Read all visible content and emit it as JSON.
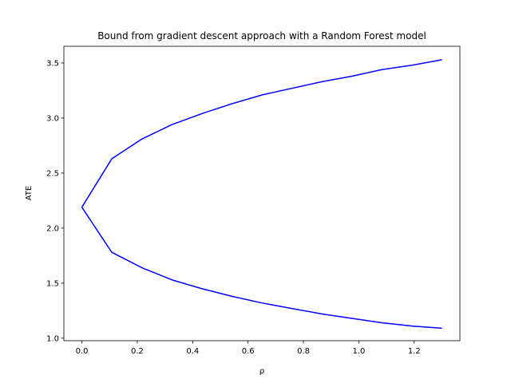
{
  "chart_data": {
    "type": "line",
    "title": "Bound from gradient descent approach with a Random Forest model",
    "xlabel": "ρ",
    "ylabel": "ATE",
    "xlim": [
      -0.065,
      1.365
    ],
    "ylim": [
      0.977,
      3.652
    ],
    "x_ticks": [
      0.0,
      0.2,
      0.4,
      0.6,
      0.8,
      1.0,
      1.2
    ],
    "x_tick_labels": [
      "0.0",
      "0.2",
      "0.4",
      "0.6",
      "0.8",
      "1.0",
      "1.2"
    ],
    "y_ticks": [
      1.0,
      1.5,
      2.0,
      2.5,
      3.0,
      3.5
    ],
    "y_tick_labels": [
      "1.0",
      "1.5",
      "2.0",
      "2.5",
      "3.0",
      "3.5"
    ],
    "grid": false,
    "color": "#0000ff",
    "series": [
      {
        "x": [
          0.0,
          0.108,
          0.217,
          0.325,
          0.433,
          0.542,
          0.65,
          0.758,
          0.867,
          0.975,
          1.083,
          1.192,
          1.3
        ],
        "values": [
          2.19,
          2.63,
          2.81,
          2.94,
          3.04,
          3.13,
          3.21,
          3.27,
          3.33,
          3.38,
          3.44,
          3.48,
          3.53
        ]
      },
      {
        "x": [
          0.0,
          0.108,
          0.217,
          0.325,
          0.433,
          0.542,
          0.65,
          0.758,
          0.867,
          0.975,
          1.083,
          1.192,
          1.3
        ],
        "values": [
          2.19,
          1.78,
          1.64,
          1.53,
          1.45,
          1.38,
          1.32,
          1.27,
          1.22,
          1.18,
          1.14,
          1.11,
          1.09
        ]
      }
    ]
  }
}
